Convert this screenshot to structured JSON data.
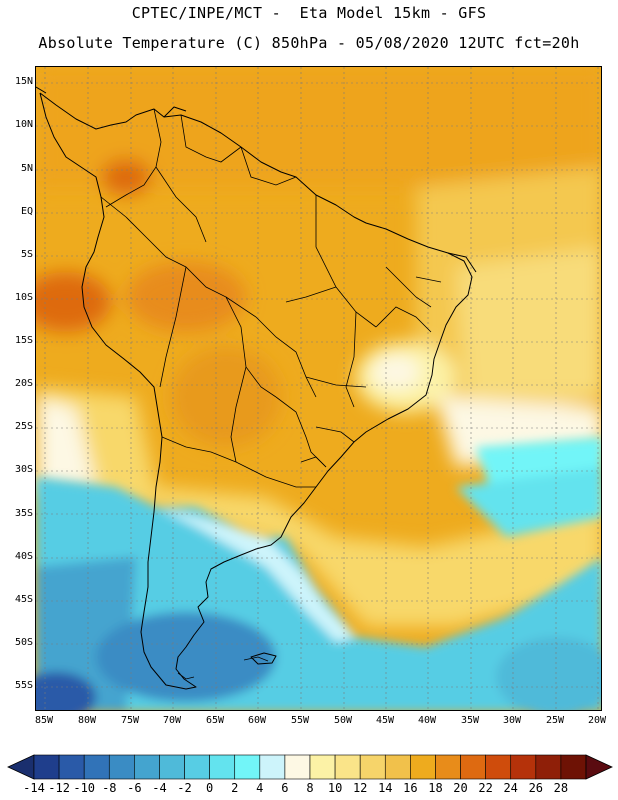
{
  "header": {
    "line1": "CPTEC/INPE/MCT -  Eta Model 15km - GFS",
    "line2": "Absolute Temperature (C) 850hPa - 05/08/2020 12UTC fct=20h"
  },
  "map": {
    "variable": "Absolute Temperature (C) 850hPa",
    "lat_labels": [
      "15N",
      "10N",
      "5N",
      "EQ",
      "5S",
      "10S",
      "15S",
      "20S",
      "25S",
      "30S",
      "35S",
      "40S",
      "45S",
      "50S",
      "55S"
    ],
    "lon_labels": [
      "85W",
      "80W",
      "75W",
      "70W",
      "65W",
      "60W",
      "55W",
      "50W",
      "45W",
      "40W",
      "35W",
      "30W",
      "25W",
      "20W"
    ]
  },
  "colorbar": {
    "labels": [
      "-14",
      "-12",
      "-10",
      "-8",
      "-6",
      "-4",
      "-2",
      "0",
      "2",
      "4",
      "6",
      "8",
      "10",
      "12",
      "14",
      "16",
      "18",
      "20",
      "22",
      "24",
      "26",
      "28"
    ],
    "colors": [
      "#1f3e8c",
      "#2a5aa8",
      "#3173b8",
      "#3a8cc4",
      "#44a4cf",
      "#4fbad9",
      "#57cde4",
      "#63e3ee",
      "#72f5f8",
      "#cdf4fb",
      "#fdf8e4",
      "#fcf2a6",
      "#fae489",
      "#f6d46a",
      "#f1c14b",
      "#eeab1e",
      "#e88c1a",
      "#de6a11",
      "#cf4c0c",
      "#b5320a",
      "#8f1f08",
      "#6e1205"
    ],
    "left_arrow_color": "#1a2f6e",
    "right_arrow_color": "#5a0b10"
  }
}
